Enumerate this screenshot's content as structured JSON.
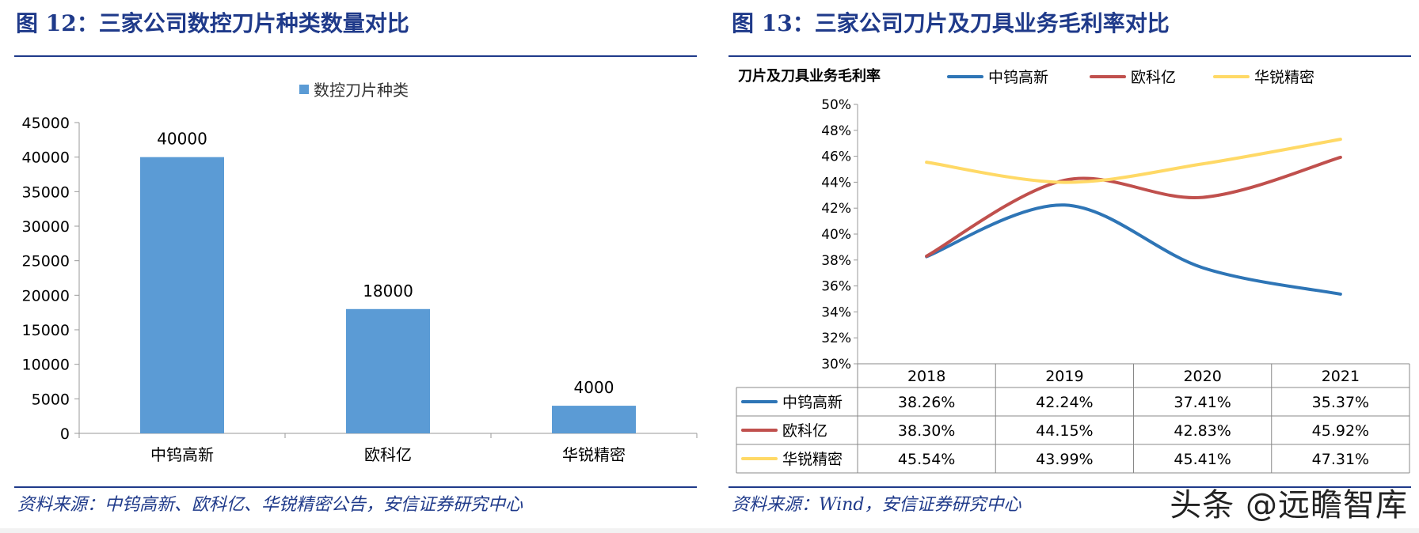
{
  "left": {
    "title": "图 12：三家公司数控刀片种类数量对比",
    "source": "资料来源：中钨高新、欧科亿、华锐精密公告，安信证券研究中心"
  },
  "right": {
    "title": "图 13：三家公司刀片及刀具业务毛利率对比",
    "source": "资料来源：Wind，安信证券研究中心"
  },
  "watermark": "头条 @远瞻智库",
  "colors": {
    "bar": "#5b9bd5",
    "title": "#1f3a8a",
    "s1": "#2e75b6",
    "s2": "#c0504d",
    "s3": "#ffd966"
  },
  "chart_data": [
    {
      "type": "bar",
      "categories": [
        "中钨高新",
        "欧科亿",
        "华锐精密"
      ],
      "series": [
        {
          "name": "数控刀片种类",
          "values": [
            40000,
            18000,
            4000
          ]
        }
      ],
      "data_labels": [
        "40000",
        "18000",
        "4000"
      ],
      "ylim": [
        0,
        45000
      ],
      "yticks": [
        "0",
        "5000",
        "10000",
        "15000",
        "20000",
        "25000",
        "30000",
        "35000",
        "40000",
        "45000"
      ],
      "legend": "top-center",
      "grid": false
    },
    {
      "type": "line",
      "categories": [
        "2018",
        "2019",
        "2020",
        "2021"
      ],
      "series": [
        {
          "name": "中钨高新",
          "values": [
            38.26,
            42.24,
            37.41,
            35.37
          ],
          "labels": [
            "38.26%",
            "42.24%",
            "37.41%",
            "35.37%"
          ]
        },
        {
          "name": "欧科亿",
          "values": [
            38.3,
            44.15,
            42.83,
            45.92
          ],
          "labels": [
            "38.30%",
            "44.15%",
            "42.83%",
            "45.92%"
          ]
        },
        {
          "name": "华锐精密",
          "values": [
            45.54,
            43.99,
            45.41,
            47.31
          ],
          "labels": [
            "45.54%",
            "43.99%",
            "45.41%",
            "47.31%"
          ]
        }
      ],
      "legend_title": "刀片及刀具业务毛利率",
      "ylim": [
        30,
        50
      ],
      "yticks": [
        "30%",
        "32%",
        "34%",
        "36%",
        "38%",
        "40%",
        "42%",
        "44%",
        "46%",
        "48%",
        "50%"
      ],
      "legend": "top",
      "data_table": true,
      "grid": false
    }
  ]
}
